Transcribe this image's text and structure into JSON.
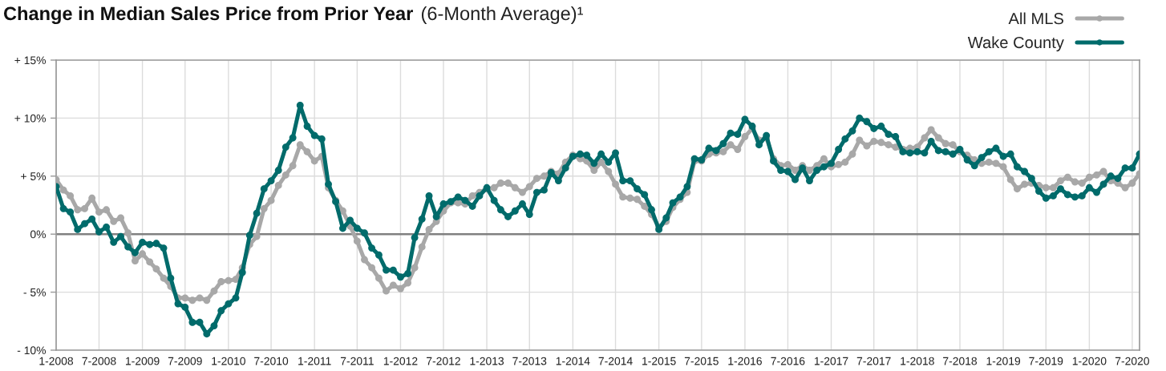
{
  "chart_data": {
    "type": "line",
    "title": "Change in Median Sales Price from Prior Year",
    "subtitle": "(6-Month Average)¹",
    "x": [
      "2008-01",
      "2008-02",
      "2008-03",
      "2008-04",
      "2008-05",
      "2008-06",
      "2008-07",
      "2008-08",
      "2008-09",
      "2008-10",
      "2008-11",
      "2008-12",
      "2009-01",
      "2009-02",
      "2009-03",
      "2009-04",
      "2009-05",
      "2009-06",
      "2009-07",
      "2009-08",
      "2009-09",
      "2009-10",
      "2009-11",
      "2009-12",
      "2010-01",
      "2010-02",
      "2010-03",
      "2010-04",
      "2010-05",
      "2010-06",
      "2010-07",
      "2010-08",
      "2010-09",
      "2010-10",
      "2010-11",
      "2010-12",
      "2011-01",
      "2011-02",
      "2011-03",
      "2011-04",
      "2011-05",
      "2011-06",
      "2011-07",
      "2011-08",
      "2011-09",
      "2011-10",
      "2011-11",
      "2011-12",
      "2012-01",
      "2012-02",
      "2012-03",
      "2012-04",
      "2012-05",
      "2012-06",
      "2012-07",
      "2012-08",
      "2012-09",
      "2012-10",
      "2012-11",
      "2012-12",
      "2013-01",
      "2013-02",
      "2013-03",
      "2013-04",
      "2013-05",
      "2013-06",
      "2013-07",
      "2013-08",
      "2013-09",
      "2013-10",
      "2013-11",
      "2013-12",
      "2014-01",
      "2014-02",
      "2014-03",
      "2014-04",
      "2014-05",
      "2014-06",
      "2014-07",
      "2014-08",
      "2014-09",
      "2014-10",
      "2014-11",
      "2014-12",
      "2015-01",
      "2015-02",
      "2015-03",
      "2015-04",
      "2015-05",
      "2015-06",
      "2015-07",
      "2015-08",
      "2015-09",
      "2015-10",
      "2015-11",
      "2015-12",
      "2016-01",
      "2016-02",
      "2016-03",
      "2016-04",
      "2016-05",
      "2016-06",
      "2016-07",
      "2016-08",
      "2016-09",
      "2016-10",
      "2016-11",
      "2016-12",
      "2017-01",
      "2017-02",
      "2017-03",
      "2017-04",
      "2017-05",
      "2017-06",
      "2017-07",
      "2017-08",
      "2017-09",
      "2017-10",
      "2017-11",
      "2017-12",
      "2018-01",
      "2018-02",
      "2018-03",
      "2018-04",
      "2018-05",
      "2018-06",
      "2018-07",
      "2018-08",
      "2018-09",
      "2018-10",
      "2018-11",
      "2018-12",
      "2019-01",
      "2019-02",
      "2019-03",
      "2019-04",
      "2019-05",
      "2019-06",
      "2019-07",
      "2019-08",
      "2019-09",
      "2019-10",
      "2019-11",
      "2019-12",
      "2020-01",
      "2020-02",
      "2020-03",
      "2020-04",
      "2020-05",
      "2020-06",
      "2020-07",
      "2020-08"
    ],
    "series": [
      {
        "name": "All MLS",
        "color": "#a8a8a8",
        "values": [
          4.7,
          3.8,
          3.3,
          2.1,
          2.2,
          3.1,
          1.9,
          2.1,
          1.1,
          1.4,
          0.1,
          -2.3,
          -1.7,
          -2.4,
          -3.0,
          -3.8,
          -4.5,
          -5.5,
          -5.5,
          -5.7,
          -5.5,
          -5.7,
          -4.9,
          -4.1,
          -4.0,
          -3.9,
          -2.9,
          -0.9,
          -0.2,
          2.2,
          2.9,
          4.2,
          5.1,
          5.9,
          7.7,
          7.1,
          6.3,
          6.7,
          4.0,
          2.9,
          2.0,
          0.7,
          -0.6,
          -2.2,
          -2.9,
          -3.8,
          -4.9,
          -4.4,
          -4.7,
          -4.2,
          -2.9,
          -1.1,
          0.4,
          1.1,
          2.0,
          2.7,
          2.7,
          2.6,
          3.3,
          3.6,
          3.9,
          4.0,
          4.4,
          4.4,
          4.0,
          3.6,
          4.1,
          4.8,
          5.0,
          5.4,
          5.2,
          6.2,
          6.8,
          6.5,
          6.3,
          5.5,
          6.2,
          5.4,
          4.3,
          3.2,
          3.1,
          3.0,
          2.4,
          1.7,
          0.6,
          1.1,
          2.3,
          3.0,
          3.6,
          6.3,
          6.3,
          6.9,
          7.0,
          7.1,
          7.7,
          7.3,
          8.4,
          9.1,
          8.1,
          8.3,
          6.5,
          5.9,
          6.0,
          5.5,
          5.9,
          5.5,
          5.9,
          6.5,
          5.8,
          6.0,
          6.2,
          6.9,
          8.1,
          7.6,
          8.0,
          7.9,
          7.7,
          7.5,
          7.3,
          7.4,
          7.5,
          8.3,
          9.0,
          8.3,
          7.8,
          7.7,
          7.1,
          6.8,
          6.4,
          6.1,
          6.2,
          6.1,
          5.8,
          4.7,
          3.9,
          4.3,
          4.4,
          4.2,
          4.0,
          4.0,
          4.6,
          4.9,
          4.5,
          4.4,
          4.9,
          5.1,
          5.4,
          4.6,
          4.4,
          4.0,
          4.4,
          5.2
        ]
      },
      {
        "name": "Wake County",
        "color": "#006b6b",
        "values": [
          4.1,
          2.2,
          1.9,
          0.4,
          0.9,
          1.3,
          0.2,
          0.6,
          -0.7,
          -0.2,
          -1.1,
          -1.6,
          -0.7,
          -0.9,
          -0.8,
          -1.2,
          -3.8,
          -6.0,
          -6.3,
          -7.6,
          -7.6,
          -8.6,
          -7.9,
          -6.6,
          -6.0,
          -5.5,
          -3.3,
          -0.1,
          1.8,
          3.9,
          4.6,
          5.5,
          7.5,
          8.3,
          11.1,
          9.3,
          8.5,
          8.2,
          4.3,
          2.8,
          0.5,
          1.2,
          0.5,
          0.1,
          -1.2,
          -1.8,
          -3.1,
          -3.1,
          -3.7,
          -3.4,
          -0.3,
          1.3,
          3.3,
          1.5,
          2.6,
          2.8,
          3.2,
          2.9,
          2.4,
          3.3,
          4.0,
          2.9,
          2.1,
          1.5,
          2.0,
          2.6,
          1.7,
          3.6,
          3.8,
          5.3,
          4.6,
          5.7,
          6.7,
          6.9,
          6.8,
          6.1,
          6.9,
          6.2,
          7.0,
          4.6,
          4.6,
          3.9,
          3.4,
          2.1,
          0.4,
          1.4,
          2.7,
          3.2,
          4.1,
          6.5,
          6.4,
          7.4,
          7.2,
          7.8,
          8.7,
          8.6,
          9.9,
          9.3,
          7.7,
          8.5,
          6.3,
          5.5,
          5.4,
          4.7,
          5.7,
          4.6,
          5.5,
          5.8,
          6.1,
          7.3,
          8.2,
          8.9,
          10.0,
          9.7,
          9.1,
          9.3,
          8.6,
          8.4,
          7.1,
          7.0,
          7.1,
          7.0,
          8.0,
          7.2,
          7.1,
          6.9,
          7.3,
          6.4,
          5.9,
          6.6,
          7.1,
          7.4,
          6.7,
          6.9,
          5.8,
          5.4,
          4.8,
          3.7,
          3.1,
          3.3,
          3.9,
          3.4,
          3.2,
          3.3,
          4.0,
          3.6,
          4.3,
          5.0,
          4.8,
          5.7,
          5.7,
          6.9
        ]
      }
    ],
    "xlim": [
      "2008-01",
      "2020-08"
    ],
    "xticks": [
      {
        "value": "2008-01",
        "label": "1-2008"
      },
      {
        "value": "2008-07",
        "label": "7-2008"
      },
      {
        "value": "2009-01",
        "label": "1-2009"
      },
      {
        "value": "2009-07",
        "label": "7-2009"
      },
      {
        "value": "2010-01",
        "label": "1-2010"
      },
      {
        "value": "2010-07",
        "label": "7-2010"
      },
      {
        "value": "2011-01",
        "label": "1-2011"
      },
      {
        "value": "2011-07",
        "label": "7-2011"
      },
      {
        "value": "2012-01",
        "label": "1-2012"
      },
      {
        "value": "2012-07",
        "label": "7-2012"
      },
      {
        "value": "2013-01",
        "label": "1-2013"
      },
      {
        "value": "2013-07",
        "label": "7-2013"
      },
      {
        "value": "2014-01",
        "label": "1-2014"
      },
      {
        "value": "2014-07",
        "label": "7-2014"
      },
      {
        "value": "2015-01",
        "label": "1-2015"
      },
      {
        "value": "2015-07",
        "label": "7-2015"
      },
      {
        "value": "2016-01",
        "label": "1-2016"
      },
      {
        "value": "2016-07",
        "label": "7-2016"
      },
      {
        "value": "2017-01",
        "label": "1-2017"
      },
      {
        "value": "2017-07",
        "label": "7-2017"
      },
      {
        "value": "2018-01",
        "label": "1-2018"
      },
      {
        "value": "2018-07",
        "label": "7-2018"
      },
      {
        "value": "2019-01",
        "label": "1-2019"
      },
      {
        "value": "2019-07",
        "label": "7-2019"
      },
      {
        "value": "2020-01",
        "label": "1-2020"
      },
      {
        "value": "2020-07",
        "label": "7-2020"
      }
    ],
    "ylim": [
      -10,
      15
    ],
    "yticks": [
      {
        "value": -10,
        "label": "- 10%"
      },
      {
        "value": -5,
        "label": "- 5%"
      },
      {
        "value": 0,
        "label": "0%"
      },
      {
        "value": 5,
        "label": "+ 5%"
      },
      {
        "value": 10,
        "label": "+ 10%"
      },
      {
        "value": 15,
        "label": "+ 15%"
      }
    ],
    "grid": true,
    "legend": "top right",
    "marker": "circle",
    "line_style": "solid",
    "ref_lines": [
      {
        "axis": "y",
        "value": 0,
        "color": "#808080"
      }
    ]
  }
}
